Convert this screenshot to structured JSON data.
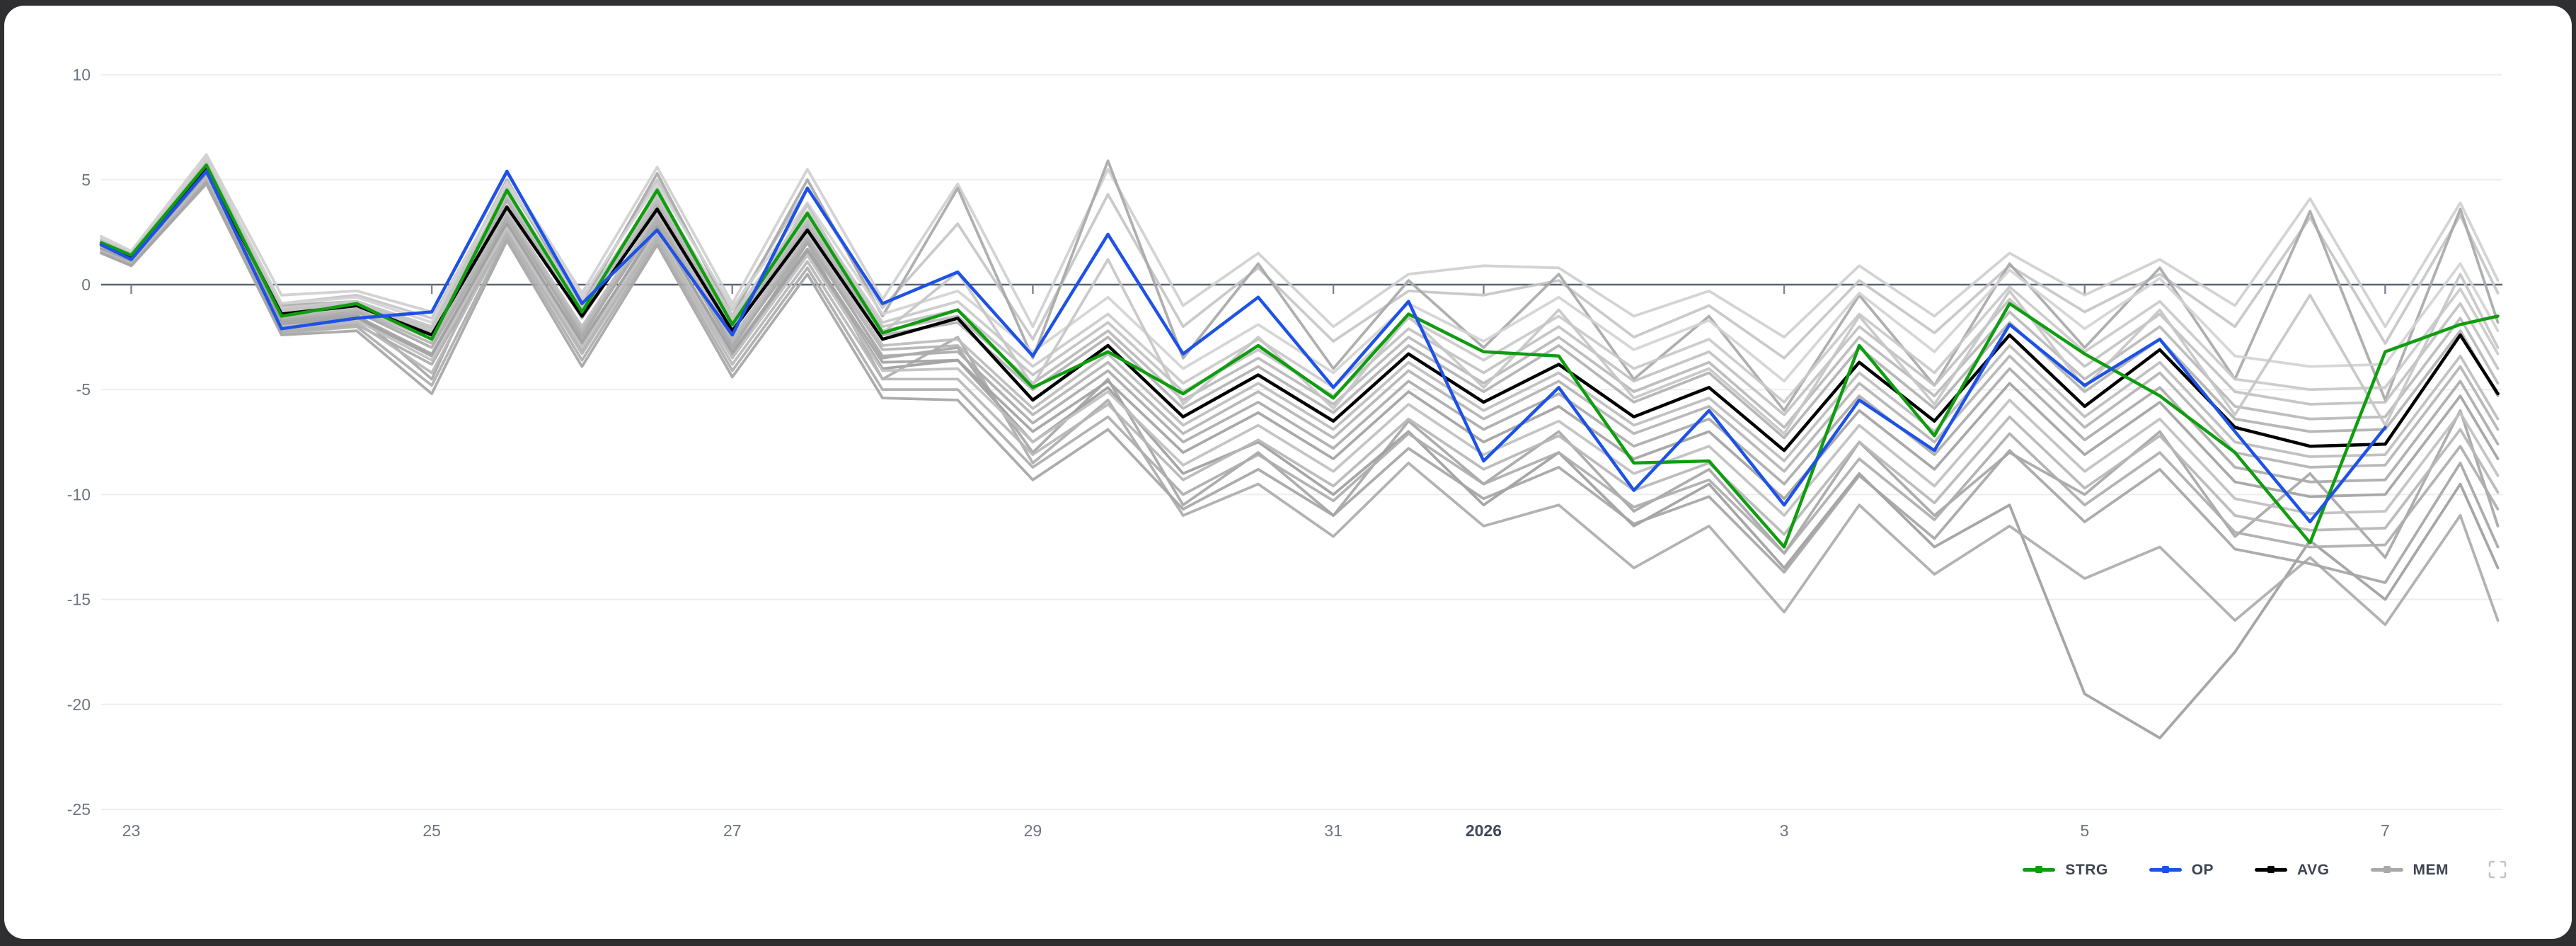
{
  "page": {
    "background": "#2f2f31",
    "card_background": "#ffffff"
  },
  "chart_data": {
    "type": "line",
    "title": "",
    "xlabel": "",
    "ylabel": "",
    "x_axis": {
      "range_days": [
        22.8,
        38.78
      ],
      "ticks": [
        {
          "label": "23",
          "x": 23,
          "bold": false
        },
        {
          "label": "25",
          "x": 25,
          "bold": false
        },
        {
          "label": "27",
          "x": 27,
          "bold": false
        },
        {
          "label": "29",
          "x": 29,
          "bold": false
        },
        {
          "label": "31",
          "x": 31,
          "bold": false
        },
        {
          "label": "2026",
          "x": 32,
          "bold": true
        },
        {
          "label": "3",
          "x": 34,
          "bold": false
        },
        {
          "label": "5",
          "x": 36,
          "bold": false
        },
        {
          "label": "7",
          "x": 38,
          "bold": false
        }
      ]
    },
    "y_axis": {
      "range": [
        -25,
        10
      ],
      "ticks": [
        10,
        5,
        0,
        -5,
        -10,
        -15,
        -20,
        -25
      ]
    },
    "grid": {
      "grid_color": "#ededed",
      "zero_line_color": "#5b6170",
      "tick_color": "#7f8593",
      "label_color": "#6d7380",
      "bold_label_color": "#42485a"
    },
    "x": [
      22.8,
      23,
      23.5,
      24,
      24.5,
      25,
      25.5,
      26,
      26.5,
      27,
      27.5,
      28,
      28.5,
      29,
      29.5,
      30,
      30.5,
      31,
      31.5,
      32,
      32.5,
      33,
      33.5,
      34,
      34.5,
      35,
      35.5,
      36,
      36.5,
      37,
      37.5,
      38,
      38.5,
      38.75
    ],
    "series": [
      {
        "name": "STRG",
        "color": "#0f9d0f",
        "width": 4.5,
        "values": [
          2.0,
          1.4,
          5.7,
          -1.5,
          -0.9,
          -2.6,
          4.5,
          -1.3,
          4.5,
          -1.9,
          3.4,
          -2.3,
          -1.2,
          -4.9,
          -3.2,
          -5.2,
          -2.9,
          -5.4,
          -1.4,
          -3.2,
          -3.4,
          -8.5,
          -8.4,
          -12.5,
          -2.9,
          -7.2,
          -0.9,
          -3.3,
          -5.3,
          -8.0,
          -12.3,
          -3.2,
          -1.9,
          -1.5
        ]
      },
      {
        "name": "OP",
        "color": "#1e52e6",
        "width": 4.5,
        "values": [
          1.9,
          1.2,
          5.4,
          -2.1,
          -1.6,
          -1.3,
          5.4,
          -0.9,
          2.6,
          -2.4,
          4.6,
          -0.9,
          0.6,
          -3.4,
          2.4,
          -3.3,
          -0.6,
          -4.9,
          -0.8,
          -8.4,
          -4.9,
          -9.8,
          -6.0,
          -10.5,
          -5.5,
          -7.9,
          -1.9,
          -4.8,
          -2.6,
          -7.0,
          -11.3,
          -6.8,
          null,
          null
        ]
      },
      {
        "name": "AVG",
        "color": "#000000",
        "width": 4.5,
        "values": [
          1.9,
          1.3,
          5.5,
          -1.4,
          -1.0,
          -2.4,
          3.7,
          -1.5,
          3.6,
          -2.2,
          2.6,
          -2.6,
          -1.6,
          -5.5,
          -2.9,
          -6.3,
          -4.3,
          -6.5,
          -3.3,
          -5.6,
          -3.8,
          -6.3,
          -4.9,
          -7.9,
          -3.7,
          -6.5,
          -2.4,
          -5.8,
          -3.1,
          -6.8,
          -7.7,
          -7.6,
          -2.4,
          -5.2
        ]
      }
    ],
    "members": {
      "name": "MEM",
      "width": 3.8,
      "opacity": 0.92,
      "colors": [
        "#cfcfcf",
        "#c6c6c6",
        "#a8a8a8",
        "#a6a6a6",
        "#9e9e9e",
        "#ababab",
        "#d2d2d2",
        "#c9c9c9",
        "#c1c1c1",
        "#b9b9b9",
        "#b1b1b1",
        "#c6c6c6",
        "#bcbcbc",
        "#b3b3b3",
        "#aaaaaa",
        "#a2a2a2",
        "#bfbfbf",
        "#b6b6b6",
        "#adadad",
        "#a5a5a5"
      ],
      "lines": [
        [
          2.3,
          1.6,
          6.2,
          -0.5,
          -0.3,
          -1.3,
          5.3,
          -0.4,
          5.6,
          -0.9,
          5.5,
          -0.7,
          4.8,
          -2.0,
          5.5,
          -1.0,
          1.5,
          -2.0,
          0.5,
          0.9,
          0.8,
          -1.5,
          -0.3,
          -2.5,
          0.9,
          -1.5,
          1.5,
          -0.5,
          1.2,
          -1.0,
          4.1,
          -2.0,
          3.9,
          0.2
        ],
        [
          2.2,
          1.5,
          5.9,
          -0.9,
          -0.5,
          -1.6,
          4.8,
          -0.7,
          5.0,
          -1.2,
          4.6,
          -1.1,
          2.9,
          -2.6,
          4.3,
          -2.0,
          0.8,
          -2.7,
          -0.3,
          -0.5,
          0.2,
          -2.5,
          -1.0,
          -3.5,
          0.2,
          -2.3,
          0.9,
          -1.3,
          0.5,
          -2.0,
          3.2,
          -2.8,
          3.3,
          -0.4
        ],
        [
          2.1,
          1.4,
          6.0,
          -1.0,
          -0.8,
          -2.0,
          5.0,
          -1.0,
          5.3,
          -1.5,
          5.0,
          -1.5,
          4.6,
          -3.5,
          5.9,
          -3.5,
          1.0,
          -4.0,
          0.2,
          -3.0,
          0.5,
          -4.5,
          -1.5,
          -6.0,
          -0.5,
          -4.8,
          1.0,
          -3.0,
          0.8,
          -4.5,
          3.5,
          -5.5,
          3.6,
          -1.8
        ],
        [
          1.9,
          1.2,
          5.4,
          -1.7,
          -1.4,
          -4.5,
          3.3,
          -2.5,
          3.2,
          -3.0,
          2.2,
          -3.5,
          -3.0,
          -8.0,
          -4.5,
          -10.5,
          -8.0,
          -11.0,
          -6.5,
          -9.5,
          -7.0,
          -10.8,
          -8.8,
          -12.8,
          -7.5,
          -11.0,
          -8.0,
          -10.0,
          -7.0,
          -12.0,
          -9.0,
          -13.0,
          -6.0,
          -11.5
        ],
        [
          1.7,
          1.1,
          5.2,
          -1.9,
          -1.6,
          -3.4,
          2.9,
          -2.8,
          2.8,
          -3.3,
          1.6,
          -4.0,
          -3.6,
          -7.5,
          -4.9,
          -9.0,
          -7.5,
          -10.0,
          -7.0,
          -10.5,
          -8.0,
          -11.5,
          -9.5,
          -13.5,
          -9.0,
          -12.5,
          -10.5,
          -19.5,
          -21.6,
          -17.5,
          -12.2,
          -15.0,
          -9.5,
          -13.5
        ],
        [
          1.8,
          1.0,
          5.0,
          -2.2,
          -1.9,
          -3.8,
          2.5,
          -3.2,
          2.4,
          -3.5,
          2.0,
          -4.5,
          -2.5,
          -8.5,
          -5.5,
          -11.0,
          -9.5,
          -12.0,
          -8.5,
          -11.5,
          -10.5,
          -13.5,
          -11.5,
          -15.6,
          -10.5,
          -13.8,
          -11.5,
          -14.0,
          -12.5,
          -16.0,
          -13.0,
          -16.2,
          -11.0,
          -16.0
        ],
        [
          2.2,
          1.6,
          6.0,
          -0.9,
          -0.6,
          -1.8,
          4.9,
          -0.6,
          4.8,
          -1.1,
          3.9,
          -1.4,
          -0.3,
          -3.2,
          -0.6,
          -4.0,
          -1.9,
          -4.2,
          -0.9,
          -2.7,
          -0.6,
          -3.1,
          -1.7,
          -4.6,
          -0.4,
          -3.2,
          0.7,
          -2.1,
          0.3,
          -3.4,
          -3.9,
          -3.8,
          1.0,
          -2.2
        ],
        [
          2.1,
          1.5,
          5.8,
          -1.1,
          -0.8,
          -2.0,
          4.5,
          -1.0,
          4.4,
          -1.5,
          3.5,
          -1.8,
          -0.8,
          -3.9,
          -1.4,
          -4.7,
          -2.6,
          -4.9,
          -1.6,
          -3.6,
          -1.5,
          -4.0,
          -2.6,
          -5.6,
          -1.4,
          -4.2,
          -0.1,
          -3.2,
          -0.8,
          -4.5,
          -5.0,
          -4.9,
          -0.2,
          -3.3
        ],
        [
          2.1,
          1.4,
          5.7,
          -1.2,
          -0.9,
          -2.1,
          4.3,
          -1.2,
          4.2,
          -1.7,
          3.2,
          -2.0,
          -1.2,
          -4.3,
          -1.8,
          -5.1,
          -3.1,
          -5.3,
          -2.1,
          -4.2,
          -2.0,
          -4.6,
          -3.2,
          -6.2,
          -2.0,
          -4.8,
          -0.7,
          -3.9,
          -1.4,
          -5.1,
          -5.7,
          -5.6,
          -0.9,
          -4.0
        ],
        [
          2.0,
          1.4,
          5.6,
          -1.3,
          -0.9,
          -2.2,
          4.1,
          -1.4,
          4.0,
          -1.9,
          3.0,
          -2.2,
          -1.5,
          -4.7,
          -2.2,
          -5.5,
          -3.5,
          -5.7,
          -2.5,
          -4.7,
          -2.5,
          -5.1,
          -3.7,
          -6.8,
          -2.5,
          -5.3,
          -1.3,
          -4.5,
          -2.0,
          -5.8,
          -6.4,
          -6.3,
          -1.6,
          -4.7
        ],
        [
          2.0,
          1.3,
          5.6,
          -1.4,
          -1.0,
          -2.3,
          4.0,
          -1.6,
          3.8,
          -2.1,
          2.8,
          -2.4,
          -1.8,
          -5.0,
          -2.5,
          -5.9,
          -3.9,
          -6.1,
          -2.9,
          -5.1,
          -2.9,
          -5.6,
          -4.2,
          -7.3,
          -3.0,
          -5.9,
          -1.8,
          -5.1,
          -2.6,
          -6.4,
          -7.0,
          -6.9,
          -2.2,
          -5.3
        ],
        [
          2.0,
          1.3,
          5.8,
          -1.3,
          -0.9,
          -2.2,
          4.6,
          -1.5,
          4.6,
          -2.0,
          3.8,
          -2.3,
          0.6,
          -4.8,
          1.2,
          -5.7,
          -2.5,
          -5.9,
          -1.5,
          -4.9,
          -1.2,
          -5.4,
          -4.0,
          -7.1,
          -1.5,
          -5.7,
          -0.3,
          -4.9,
          -1.2,
          -6.2,
          -0.5,
          -6.7,
          0.5,
          -3.0
        ],
        [
          1.8,
          1.2,
          5.4,
          -1.5,
          -1.1,
          -2.6,
          3.5,
          -2.0,
          3.4,
          -2.5,
          2.4,
          -2.9,
          -2.6,
          -5.9,
          -3.3,
          -6.7,
          -4.7,
          -6.9,
          -3.7,
          -6.0,
          -4.2,
          -6.7,
          -5.4,
          -8.4,
          -4.2,
          -7.0,
          -2.9,
          -6.3,
          -3.7,
          -7.5,
          -8.2,
          -8.1,
          -3.4,
          -6.4
        ],
        [
          1.8,
          1.2,
          5.3,
          -1.6,
          -1.2,
          -2.8,
          3.3,
          -2.2,
          3.2,
          -2.7,
          2.2,
          -3.1,
          -2.9,
          -6.2,
          -3.7,
          -7.1,
          -5.1,
          -7.3,
          -4.1,
          -6.4,
          -4.6,
          -7.1,
          -5.8,
          -8.9,
          -4.7,
          -7.5,
          -3.4,
          -6.8,
          -4.2,
          -8.0,
          -8.7,
          -8.6,
          -3.9,
          -6.9
        ],
        [
          1.7,
          1.1,
          5.3,
          -1.7,
          -1.3,
          -3.0,
          3.1,
          -2.4,
          3.0,
          -2.9,
          2.0,
          -3.4,
          -3.2,
          -6.6,
          -4.1,
          -7.5,
          -5.6,
          -7.8,
          -4.6,
          -6.9,
          -5.2,
          -7.7,
          -6.4,
          -9.5,
          -5.3,
          -8.1,
          -4.0,
          -7.4,
          -4.9,
          -8.7,
          -9.4,
          -9.3,
          -4.6,
          -7.6
        ],
        [
          1.7,
          1.1,
          5.2,
          -1.8,
          -1.5,
          -3.3,
          2.9,
          -2.7,
          2.7,
          -3.2,
          1.7,
          -3.7,
          -3.6,
          -7.0,
          -4.6,
          -8.0,
          -6.1,
          -8.3,
          -5.1,
          -7.5,
          -5.8,
          -8.3,
          -7.0,
          -10.2,
          -6.0,
          -8.8,
          -4.7,
          -8.1,
          -5.6,
          -9.4,
          -10.1,
          -10.0,
          -5.3,
          -8.3
        ],
        [
          1.6,
          1.0,
          5.1,
          -2.0,
          -1.7,
          -3.6,
          2.7,
          -3.0,
          2.5,
          -3.5,
          1.4,
          -4.1,
          -4.0,
          -7.5,
          -5.1,
          -8.6,
          -6.7,
          -8.9,
          -5.7,
          -8.1,
          -6.5,
          -9.0,
          -7.7,
          -11.0,
          -6.7,
          -9.6,
          -5.5,
          -8.9,
          -6.4,
          -10.2,
          -10.9,
          -10.8,
          -6.1,
          -9.1
        ],
        [
          1.6,
          1.0,
          5.0,
          -2.1,
          -1.8,
          -4.2,
          2.5,
          -3.3,
          2.3,
          -3.8,
          1.1,
          -4.5,
          -4.5,
          -8.1,
          -5.7,
          -9.3,
          -7.4,
          -9.6,
          -6.4,
          -8.8,
          -7.2,
          -9.8,
          -8.5,
          -11.9,
          -7.5,
          -10.4,
          -6.3,
          -9.7,
          -7.2,
          -11.0,
          -11.7,
          -11.6,
          -6.9,
          -9.9
        ],
        [
          1.5,
          0.9,
          4.9,
          -2.3,
          -2.0,
          -4.8,
          2.3,
          -3.6,
          2.1,
          -4.1,
          0.8,
          -5.0,
          -5.0,
          -8.7,
          -6.3,
          -10.0,
          -8.1,
          -10.3,
          -7.1,
          -9.5,
          -8.0,
          -10.6,
          -9.3,
          -12.8,
          -8.3,
          -11.2,
          -7.1,
          -10.5,
          -8.0,
          -11.8,
          -12.5,
          -12.4,
          -7.7,
          -10.7
        ],
        [
          1.5,
          0.9,
          4.8,
          -2.4,
          -2.2,
          -5.2,
          2.1,
          -3.9,
          1.9,
          -4.4,
          0.5,
          -5.4,
          -5.5,
          -9.3,
          -6.9,
          -10.7,
          -8.8,
          -11.0,
          -7.8,
          -10.2,
          -8.7,
          -11.4,
          -10.1,
          -13.7,
          -9.1,
          -12.1,
          -7.9,
          -11.3,
          -8.8,
          -12.6,
          -13.3,
          -14.2,
          -8.5,
          -12.5
        ]
      ]
    },
    "legend": {
      "position": "bottom-right",
      "items": [
        {
          "label": "STRG",
          "color": "#0f9d0f"
        },
        {
          "label": "OP",
          "color": "#1e52e6"
        },
        {
          "label": "AVG",
          "color": "#000000"
        },
        {
          "label": "MEM",
          "color": "#a9a9a9"
        }
      ],
      "fullscreen_icon": {
        "name": "fullscreen-icon",
        "color": "#c3c3c3"
      }
    }
  }
}
